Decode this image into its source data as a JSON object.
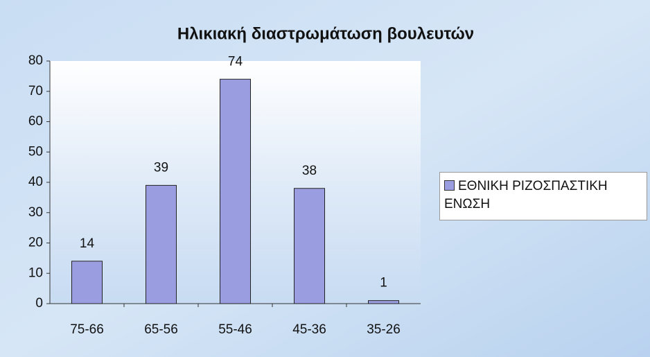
{
  "chart_data": {
    "type": "bar",
    "title": "Ηλικιακή διαστρωμάτωση βουλευτών",
    "categories": [
      "75-66",
      "65-56",
      "55-46",
      "45-36",
      "35-26"
    ],
    "series": [
      {
        "name": "ΕΘΝΙΚΗ ΡΙΖΟΣΠΑΣΤΙΚΗ ΕΝΩΣΗ",
        "color": "#9a9ee0",
        "values": [
          14,
          39,
          74,
          38,
          1
        ]
      }
    ],
    "ylim": [
      0,
      80
    ],
    "yticks": [
      0,
      10,
      20,
      30,
      40,
      50,
      60,
      70,
      80
    ],
    "grid": false,
    "legend": "right"
  }
}
